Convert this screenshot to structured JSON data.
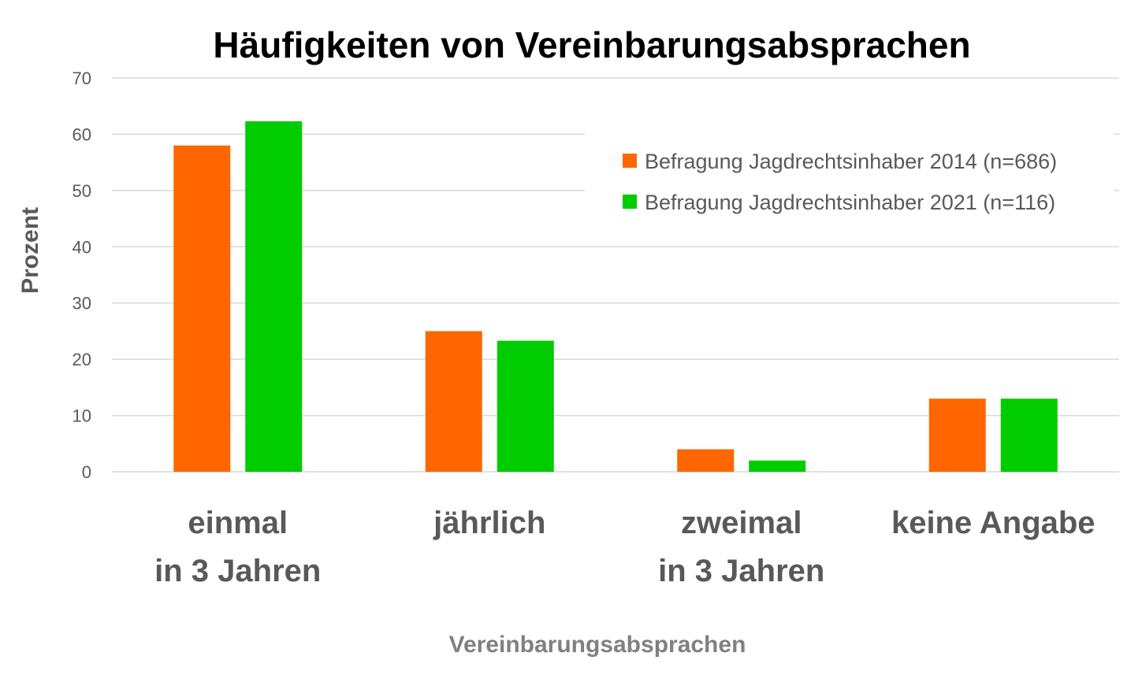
{
  "chart_data": {
    "type": "bar",
    "title": "Häufigkeiten von Vereinbarungsabsprachen",
    "xlabel": "Vereinbarungsabsprachen",
    "ylabel": "Prozent",
    "ylim": [
      0,
      70
    ],
    "yticks": [
      0,
      10,
      20,
      30,
      40,
      50,
      60,
      70
    ],
    "ytick_labels": [
      "0",
      "10",
      "20",
      "30",
      "40",
      "50",
      "60",
      "70"
    ],
    "grid": true,
    "legend_position": "top-right",
    "categories": [
      {
        "line1": "einmal",
        "line2": "in 3 Jahren"
      },
      {
        "line1": "jährlich",
        "line2": ""
      },
      {
        "line1": "zweimal",
        "line2": "in 3 Jahren"
      },
      {
        "line1": "keine Angabe",
        "line2": ""
      }
    ],
    "series": [
      {
        "name": "Befragung Jagdrechtsinhaber 2014 (n=686)",
        "color": "#ff6600",
        "values": [
          58,
          25,
          4,
          13
        ]
      },
      {
        "name": "Befragung Jagdrechtsinhaber 2021 (n=116)",
        "color": "#00cc00",
        "values": [
          62.3,
          23.3,
          2,
          13
        ]
      }
    ],
    "gridline_color": "#d9d9d9"
  }
}
